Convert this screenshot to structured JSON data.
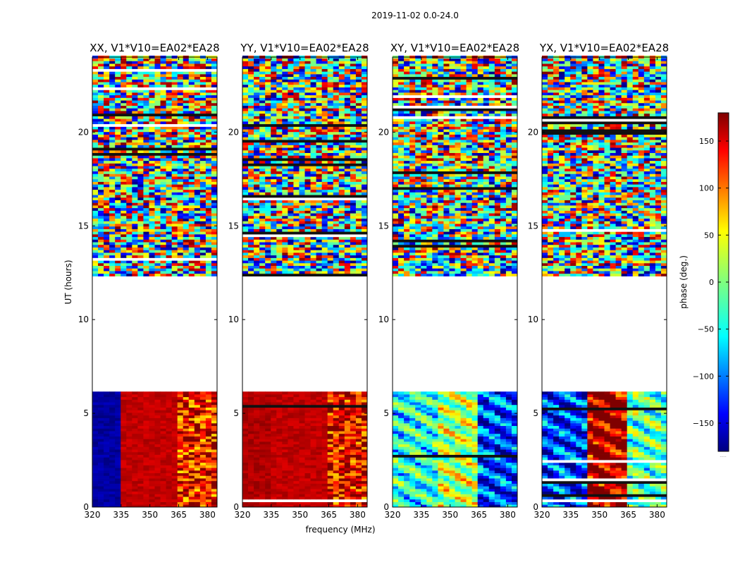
{
  "figure": {
    "suptitle": "2019-11-02 0.0-24.0"
  },
  "chart_data": {
    "type": "heatmap",
    "xlabel": "frequency (MHz)",
    "ylabel": "UT (hours)",
    "xlim": [
      320,
      385
    ],
    "ylim": [
      0,
      24
    ],
    "xticks": [
      320,
      335,
      350,
      365,
      380
    ],
    "yticks": [
      0,
      5,
      10,
      15,
      20
    ],
    "colorbar": {
      "label": "phase (deg.)",
      "range": [
        -180,
        180
      ],
      "ticks": [
        150,
        100,
        50,
        0,
        -50,
        -100,
        -150
      ],
      "colormap": "jet",
      "colors": [
        "#00007f",
        "#0000ff",
        "#007fff",
        "#00ffff",
        "#7fff7f",
        "#ffff00",
        "#ff7f00",
        "#ff0000",
        "#7f0000"
      ],
      "extra_label": "....."
    },
    "gap_hours": [
      6.1,
      12.3
    ],
    "panels": [
      {
        "title": "XX, V1*V10=EA02*EA28",
        "low_block_phase": [
          -170,
          160,
          130
        ],
        "pattern": "smooth-red"
      },
      {
        "title": "YY, V1*V10=EA02*EA28",
        "low_block_phase": [
          165,
          160,
          140
        ],
        "pattern": "smooth-red"
      },
      {
        "title": "XY, V1*V10=EA02*EA28",
        "low_block_phase": [
          -40,
          20,
          -120
        ],
        "pattern": "noisy"
      },
      {
        "title": "YX, V1*V10=EA02*EA28",
        "low_block_phase": [
          -120,
          170,
          -20
        ],
        "pattern": "noisy"
      }
    ]
  }
}
